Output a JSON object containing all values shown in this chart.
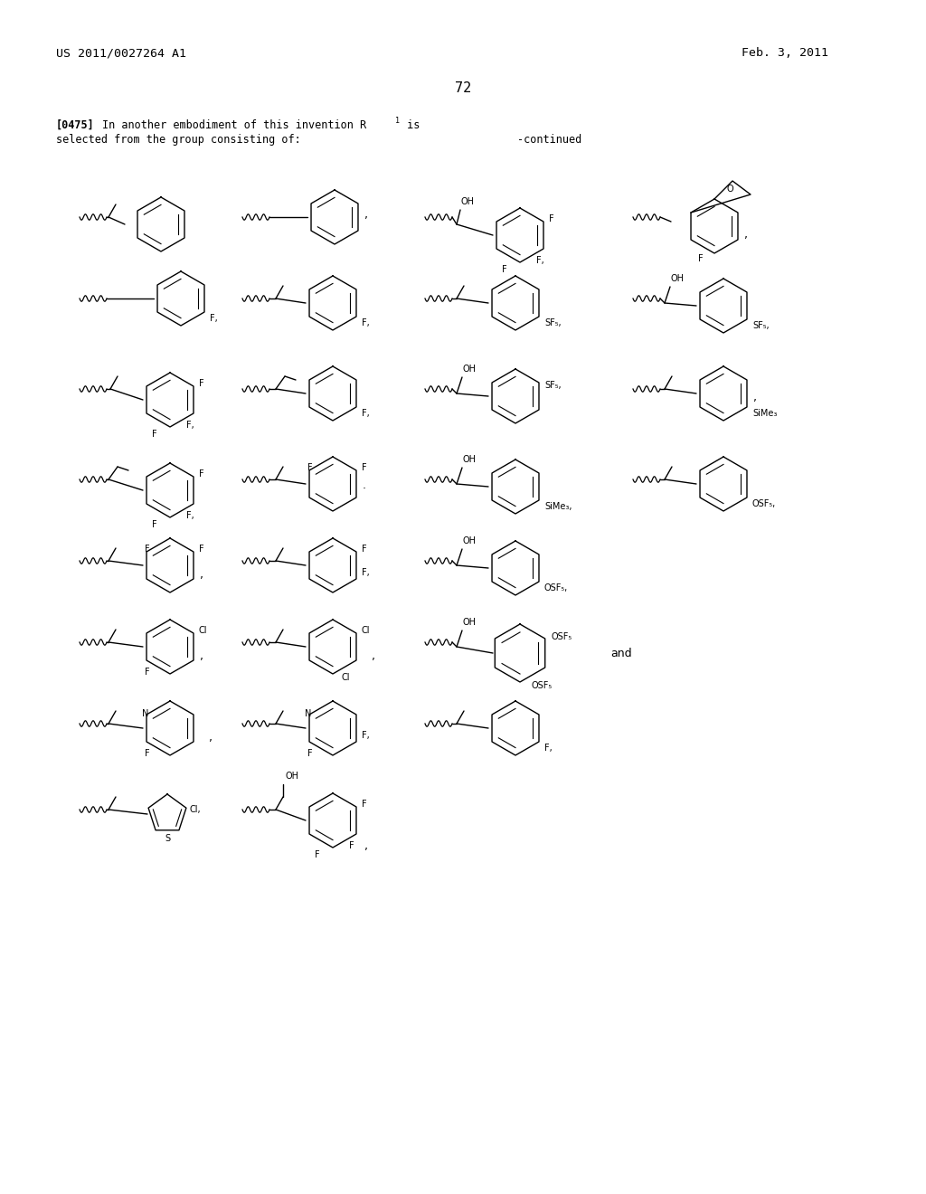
{
  "patent_number": "US 2011/0027264 A1",
  "patent_date": "Feb. 3, 2011",
  "page_number": "72",
  "bg_color": "#ffffff",
  "line_color": "#000000"
}
